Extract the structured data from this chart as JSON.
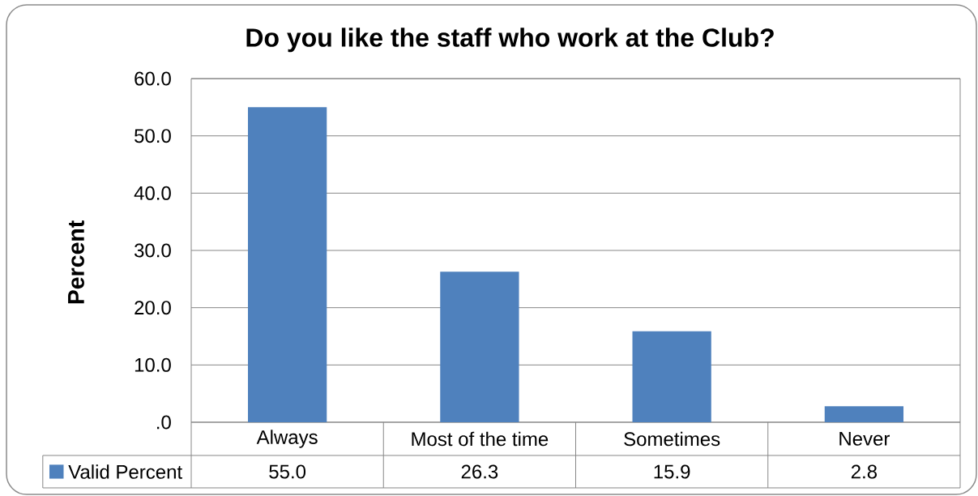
{
  "chart_data": {
    "type": "bar",
    "title": "Do you like the staff who work at the Club?",
    "ylabel": "Percent",
    "categories": [
      "Always",
      "Most of the time",
      "Sometimes",
      "Never"
    ],
    "series": [
      {
        "name": "Valid Percent",
        "color": "#4f81bd",
        "values": [
          55.0,
          26.3,
          15.9,
          2.8
        ],
        "value_labels": [
          "55.0",
          "26.3",
          "15.9",
          "2.8"
        ]
      }
    ],
    "ylim": [
      0,
      60
    ],
    "yticks": [
      {
        "value": 0,
        "label": ".0"
      },
      {
        "value": 10,
        "label": "10.0"
      },
      {
        "value": 20,
        "label": "20.0"
      },
      {
        "value": 30,
        "label": "30.0"
      },
      {
        "value": 40,
        "label": "40.0"
      },
      {
        "value": 50,
        "label": "50.0"
      },
      {
        "value": 60,
        "label": "60.0"
      }
    ],
    "grid": "y",
    "legend": "bottom"
  }
}
